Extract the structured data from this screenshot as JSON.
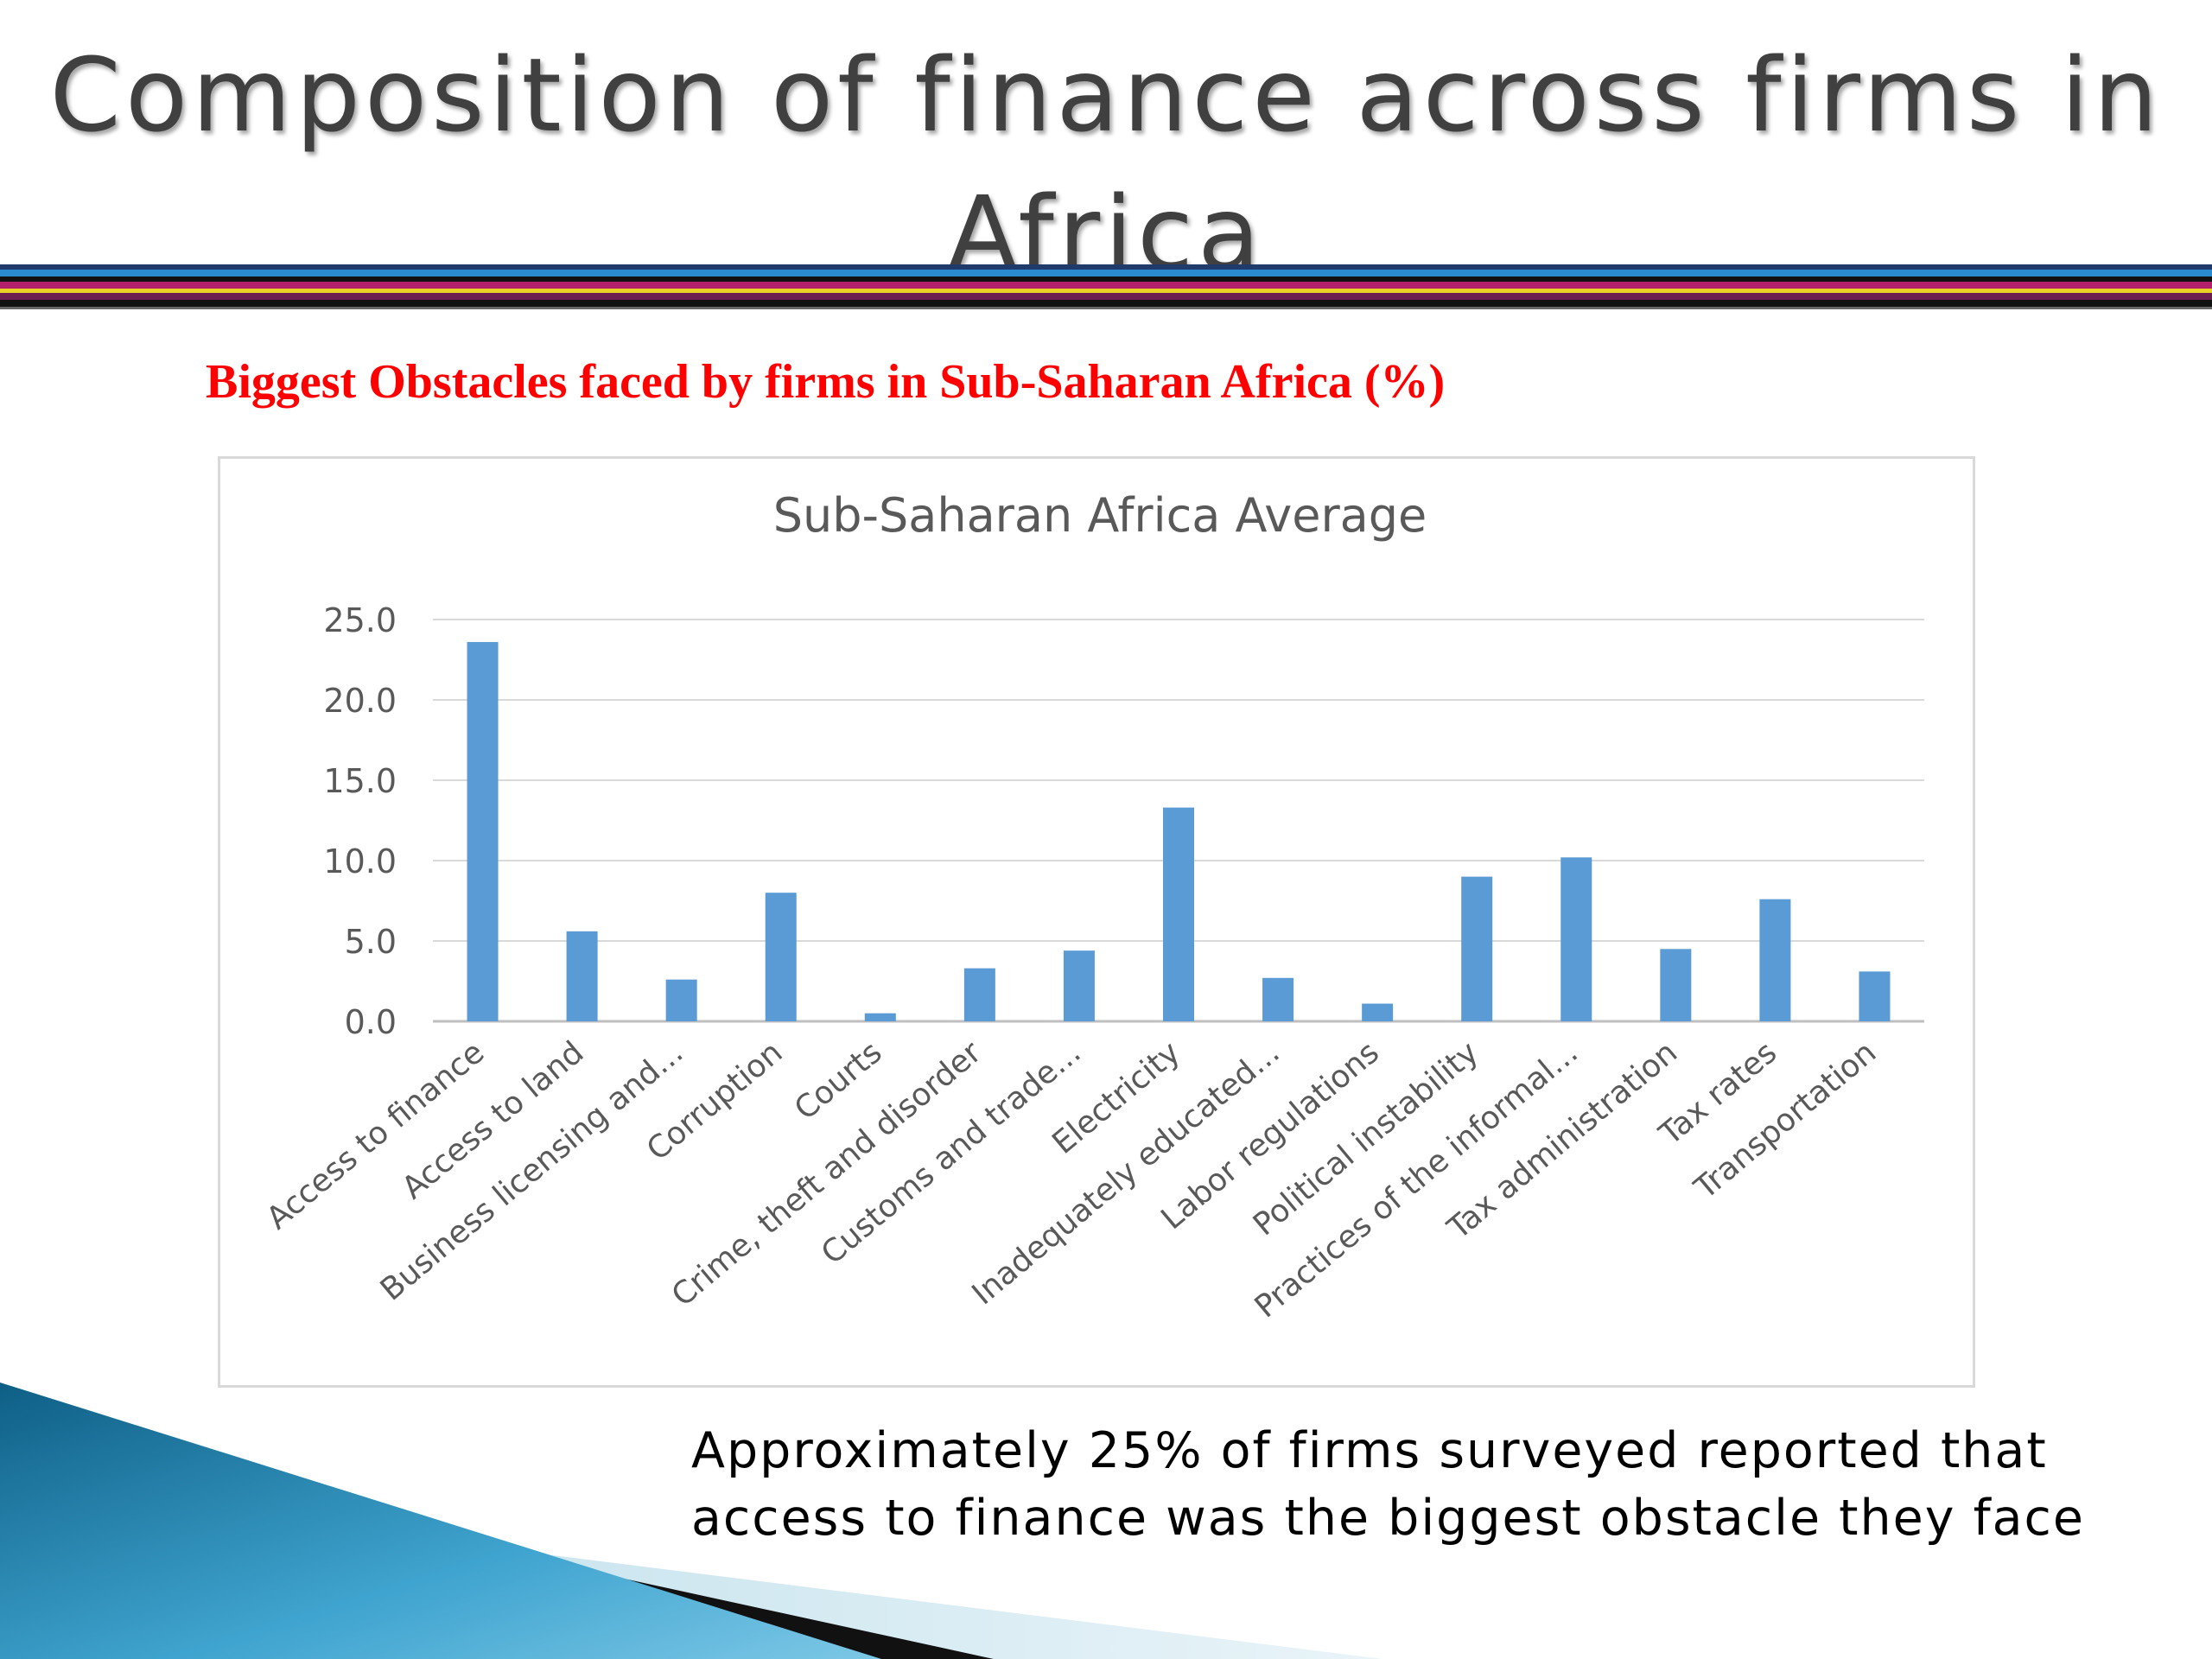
{
  "slide": {
    "title": "Composition of finance across firms in Africa",
    "subtitle": "Biggest Obstacles faced by firms in Sub-Saharan Africa (%)",
    "caption": "Approximately 25% of firms surveyed reported that access to finance was the biggest obstacle they face"
  },
  "colors": {
    "bar": "#5b9bd5",
    "subtitle": "#ff0000",
    "title": "#404040"
  },
  "chart_data": {
    "type": "bar",
    "title": "Sub-Saharan Africa Average",
    "xlabel": "",
    "ylabel": "",
    "ylim": [
      0,
      25
    ],
    "yticks": [
      "0.0",
      "5.0",
      "10.0",
      "15.0",
      "20.0",
      "25.0"
    ],
    "grid": true,
    "legend": "none",
    "categories": [
      "Access to finance",
      "Access to land",
      "Business licensing and...",
      "Corruption",
      "Courts",
      "Crime, theft and disorder",
      "Customs and trade...",
      "Electricity",
      "Inadequately educated...",
      "Labor regulations",
      "Political instability",
      "Practices of the informal...",
      "Tax administration",
      "Tax rates",
      "Transportation"
    ],
    "values": [
      23.6,
      5.6,
      2.6,
      8.0,
      0.5,
      3.3,
      4.4,
      13.3,
      2.7,
      1.1,
      9.0,
      10.2,
      4.5,
      7.6,
      3.1
    ]
  }
}
